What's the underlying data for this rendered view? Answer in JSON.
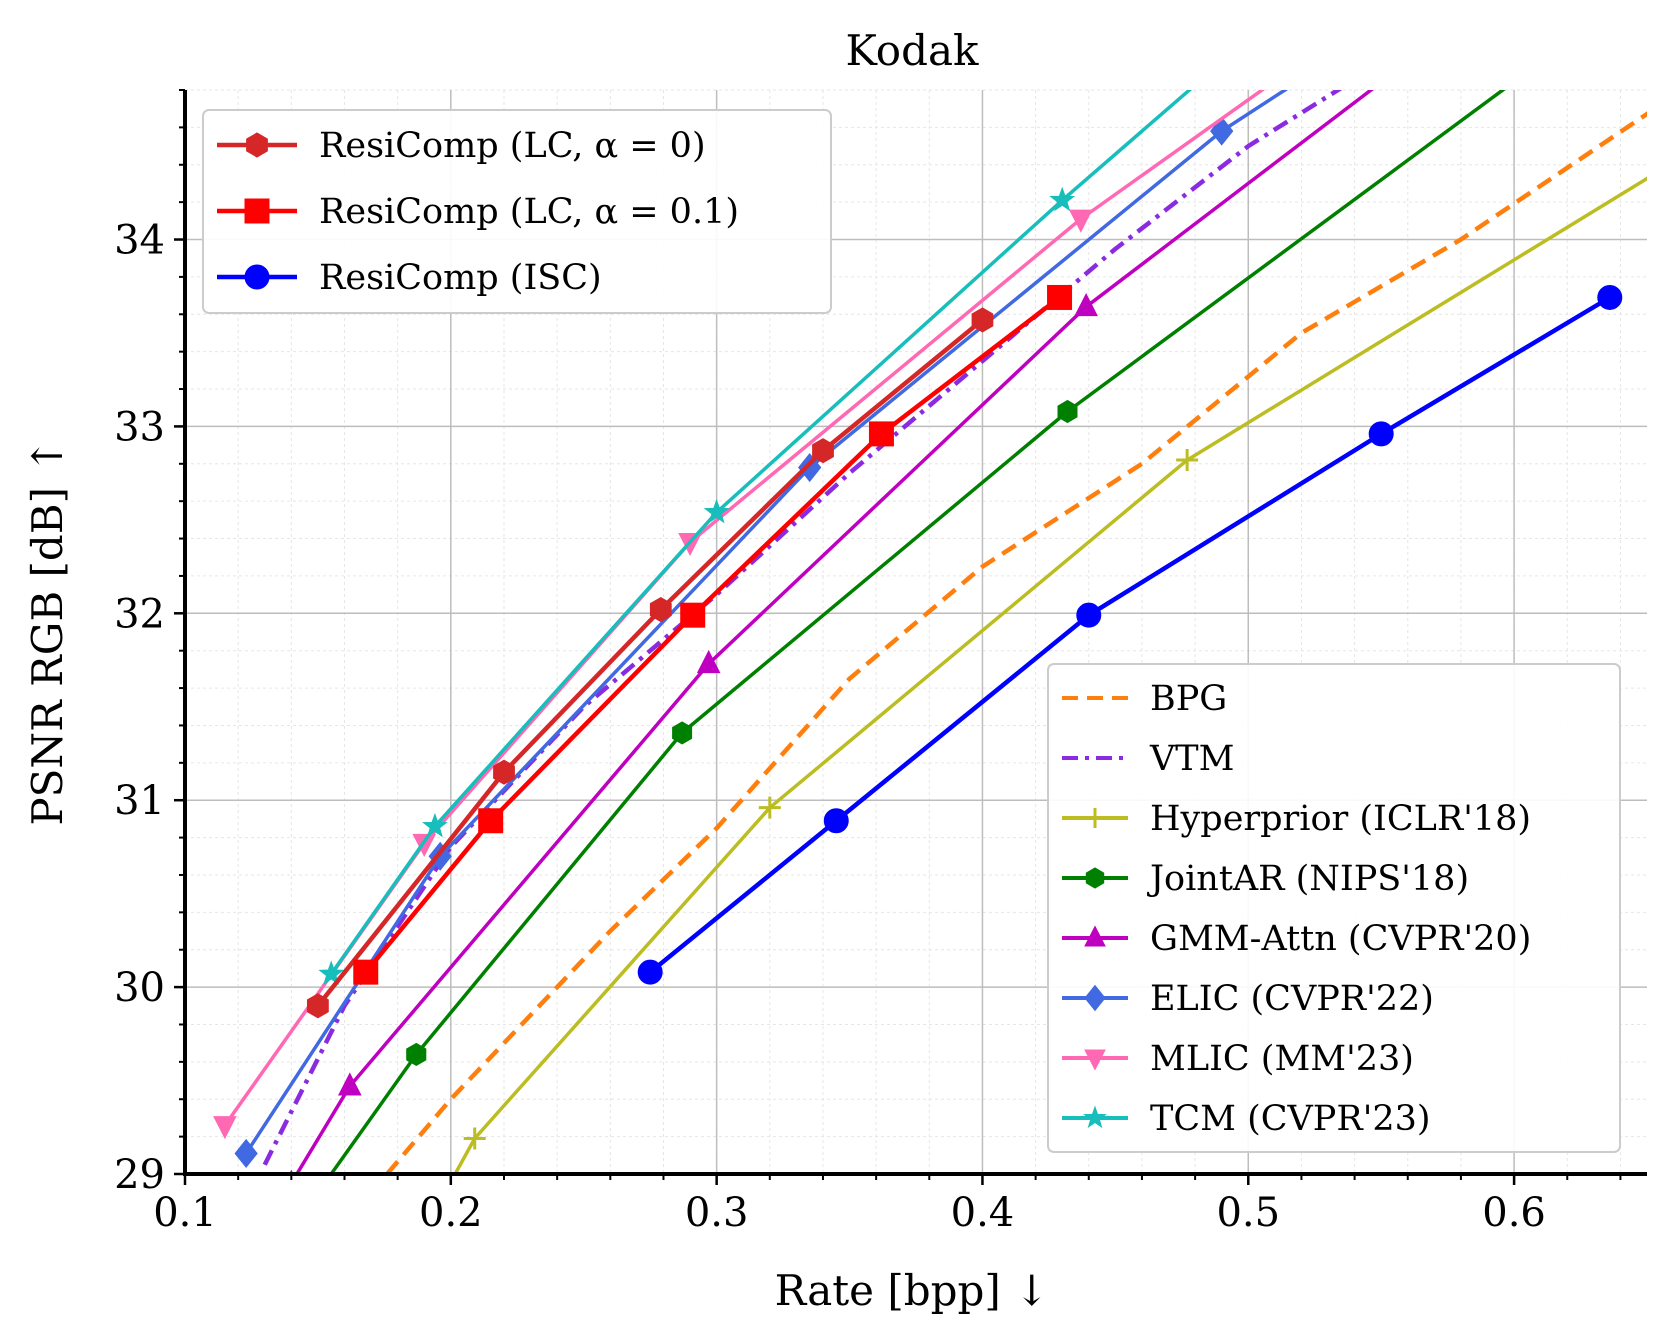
{
  "chart_data": {
    "type": "line",
    "title": "Kodak",
    "xlabel": "Rate [bpp] ↓",
    "ylabel": "PSNR RGB [dB] ↑",
    "xlim": [
      0.1,
      0.65
    ],
    "ylim": [
      29,
      34.8
    ],
    "xticks": [
      0.1,
      0.2,
      0.3,
      0.4,
      0.5,
      0.6
    ],
    "xtick_labels": [
      "0.1",
      "0.2",
      "0.3",
      "0.4",
      "0.5",
      "0.6"
    ],
    "yticks": [
      29,
      30,
      31,
      32,
      33,
      34
    ],
    "ytick_labels": [
      "29",
      "30",
      "31",
      "32",
      "33",
      "34"
    ],
    "grid": true,
    "legends": [
      {
        "placement": "upper-left",
        "series": [
          "lc0",
          "lc01",
          "isc"
        ]
      },
      {
        "placement": "lower-right",
        "series": [
          "bpg",
          "vtm",
          "hyper",
          "jointar",
          "gmm",
          "elic",
          "mlic",
          "tcm"
        ]
      }
    ],
    "series": [
      {
        "id": "bpg",
        "name": "BPG",
        "color": "#ff7f0e",
        "dash": "dashed",
        "marker": "none",
        "x": [
          0.17,
          0.2,
          0.23,
          0.26,
          0.3,
          0.35,
          0.4,
          0.46,
          0.52,
          0.58,
          0.655
        ],
        "y": [
          28.9,
          29.4,
          29.85,
          30.3,
          30.85,
          31.65,
          32.25,
          32.8,
          33.5,
          34.0,
          34.72
        ]
      },
      {
        "id": "vtm",
        "name": "VTM",
        "color": "#8a2be2",
        "dash": "dashdot",
        "marker": "none",
        "x": [
          0.13,
          0.16,
          0.2,
          0.25,
          0.3,
          0.35,
          0.4,
          0.45,
          0.5,
          0.545
        ],
        "y": [
          29.05,
          29.9,
          30.75,
          31.5,
          32.1,
          32.75,
          33.35,
          33.95,
          34.5,
          34.9
        ]
      },
      {
        "id": "hyper",
        "name": "Hyperprior (ICLR'18)",
        "color": "#bcbd22",
        "dash": "solid",
        "marker": "plus",
        "x": [
          0.19,
          0.209,
          0.32,
          0.477,
          0.655
        ],
        "y": [
          28.7,
          29.19,
          30.96,
          32.82,
          34.37
        ]
      },
      {
        "id": "jointar",
        "name": "JointAR (NIPS'18)",
        "color": "#008000",
        "dash": "solid",
        "marker": "hexagon",
        "x": [
          0.15,
          0.187,
          0.287,
          0.432,
          0.61
        ],
        "y": [
          28.9,
          29.64,
          31.36,
          33.08,
          34.95
        ]
      },
      {
        "id": "gmm",
        "name": "GMM-Attn (CVPR'20)",
        "color": "#c000c0",
        "dash": "solid",
        "marker": "triangle-up",
        "x": [
          0.14,
          0.162,
          0.297,
          0.439,
          0.56
        ],
        "y": [
          28.95,
          29.47,
          31.73,
          33.64,
          34.95
        ]
      },
      {
        "id": "elic",
        "name": "ELIC (CVPR'22)",
        "color": "#4169e1",
        "dash": "solid",
        "marker": "diamond",
        "x": [
          0.123,
          0.196,
          0.335,
          0.49,
          0.53
        ],
        "y": [
          29.11,
          30.7,
          32.78,
          34.58,
          34.95
        ]
      },
      {
        "id": "mlic",
        "name": "MLIC (MM'23)",
        "color": "#ff69b4",
        "dash": "solid",
        "marker": "triangle-down",
        "x": [
          0.115,
          0.19,
          0.29,
          0.437,
          0.52
        ],
        "y": [
          29.26,
          30.77,
          32.38,
          34.11,
          34.95
        ]
      },
      {
        "id": "tcm",
        "name": "TCM (CVPR'23)",
        "color": "#17bebb",
        "dash": "solid",
        "marker": "star",
        "x": [
          0.155,
          0.194,
          0.3,
          0.43,
          0.49
        ],
        "y": [
          30.07,
          30.86,
          32.54,
          34.21,
          34.95
        ]
      },
      {
        "id": "lc0",
        "name": "ResiComp (LC, α = 0)",
        "color": "#d62728",
        "dash": "solid",
        "marker": "hexagon",
        "bold": true,
        "x": [
          0.15,
          0.22,
          0.279,
          0.34,
          0.4
        ],
        "y": [
          29.9,
          31.15,
          32.02,
          32.87,
          33.57
        ]
      },
      {
        "id": "lc01",
        "name": "ResiComp (LC, α = 0.1)",
        "color": "#ff0000",
        "dash": "solid",
        "marker": "square",
        "bold": true,
        "x": [
          0.168,
          0.215,
          0.291,
          0.362,
          0.429
        ],
        "y": [
          30.08,
          30.89,
          31.99,
          32.96,
          33.69
        ]
      },
      {
        "id": "isc",
        "name": "ResiComp (ISC)",
        "color": "#0000ff",
        "dash": "solid",
        "marker": "circle",
        "bold": true,
        "x": [
          0.275,
          0.345,
          0.44,
          0.55,
          0.636
        ],
        "y": [
          30.08,
          30.89,
          31.99,
          32.96,
          33.69
        ]
      }
    ]
  }
}
